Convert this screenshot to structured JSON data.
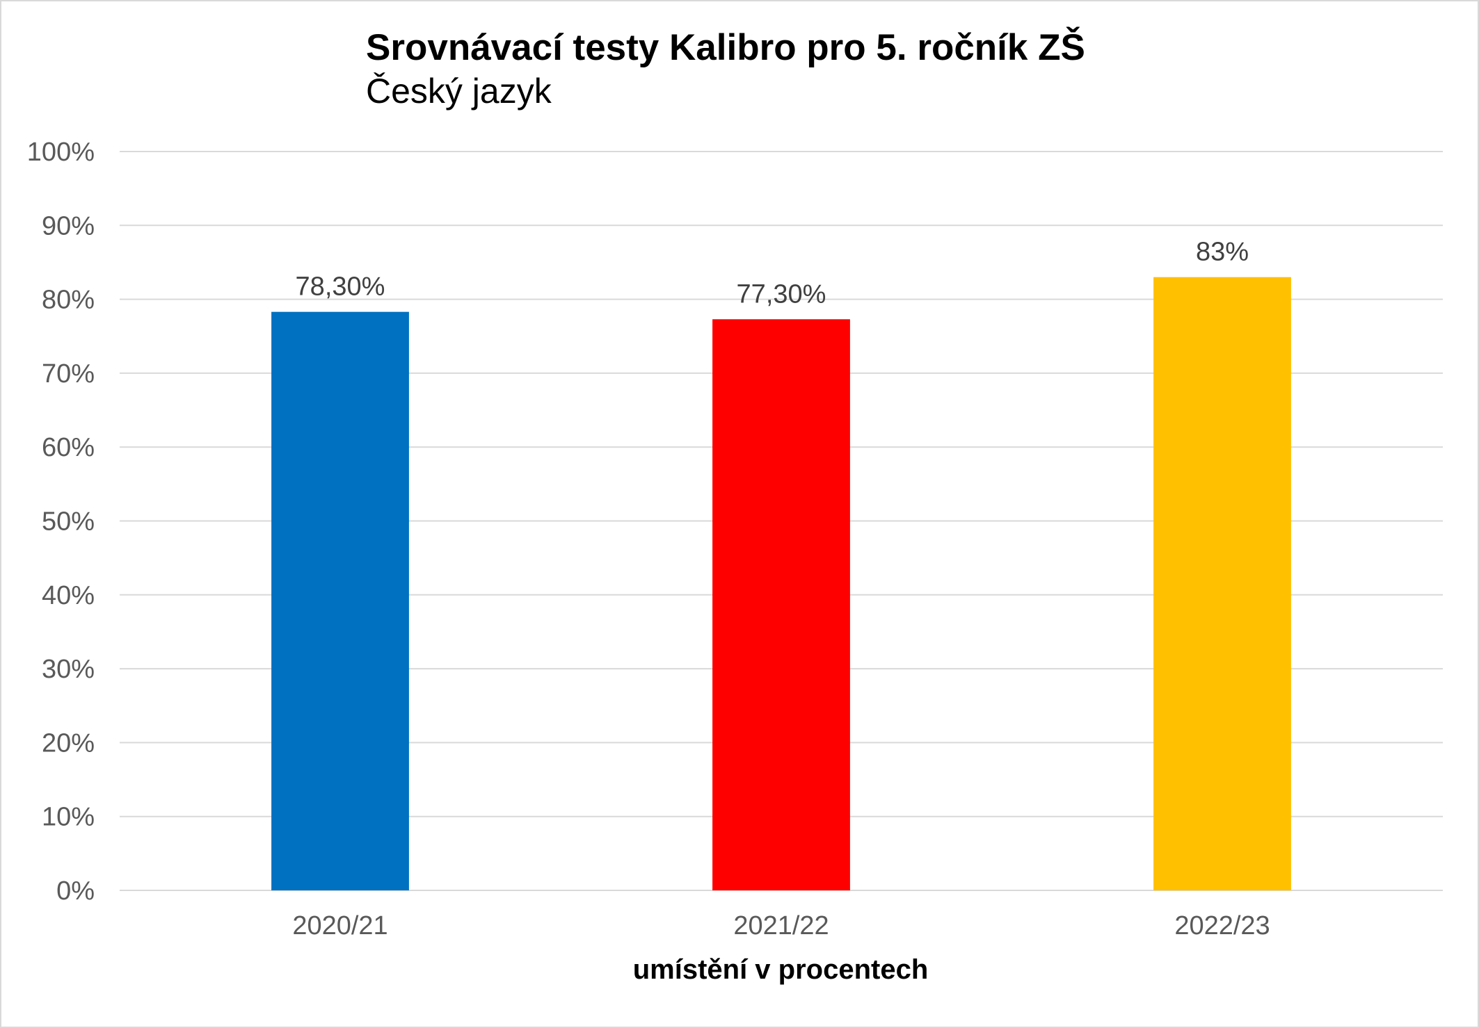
{
  "chart_data": {
    "type": "bar",
    "title": "Srovnávací testy Kalibro pro 5. ročník ZŠ",
    "subtitle": "Český jazyk",
    "categories": [
      "2020/21",
      "2021/22",
      "2022/23"
    ],
    "values": [
      78.3,
      77.3,
      83
    ],
    "data_labels": [
      "78,30%",
      "77,30%",
      "83%"
    ],
    "colors": [
      "#0070C0",
      "#FF0000",
      "#FFC000"
    ],
    "xlabel": "umístění v procentech",
    "ylim": [
      0,
      100
    ],
    "yticks": [
      0,
      10,
      20,
      30,
      40,
      50,
      60,
      70,
      80,
      90,
      100
    ],
    "ytick_labels": [
      "0%",
      "10%",
      "20%",
      "30%",
      "40%",
      "50%",
      "60%",
      "70%",
      "80%",
      "90%",
      "100%"
    ],
    "grid": true,
    "legend": "none"
  }
}
